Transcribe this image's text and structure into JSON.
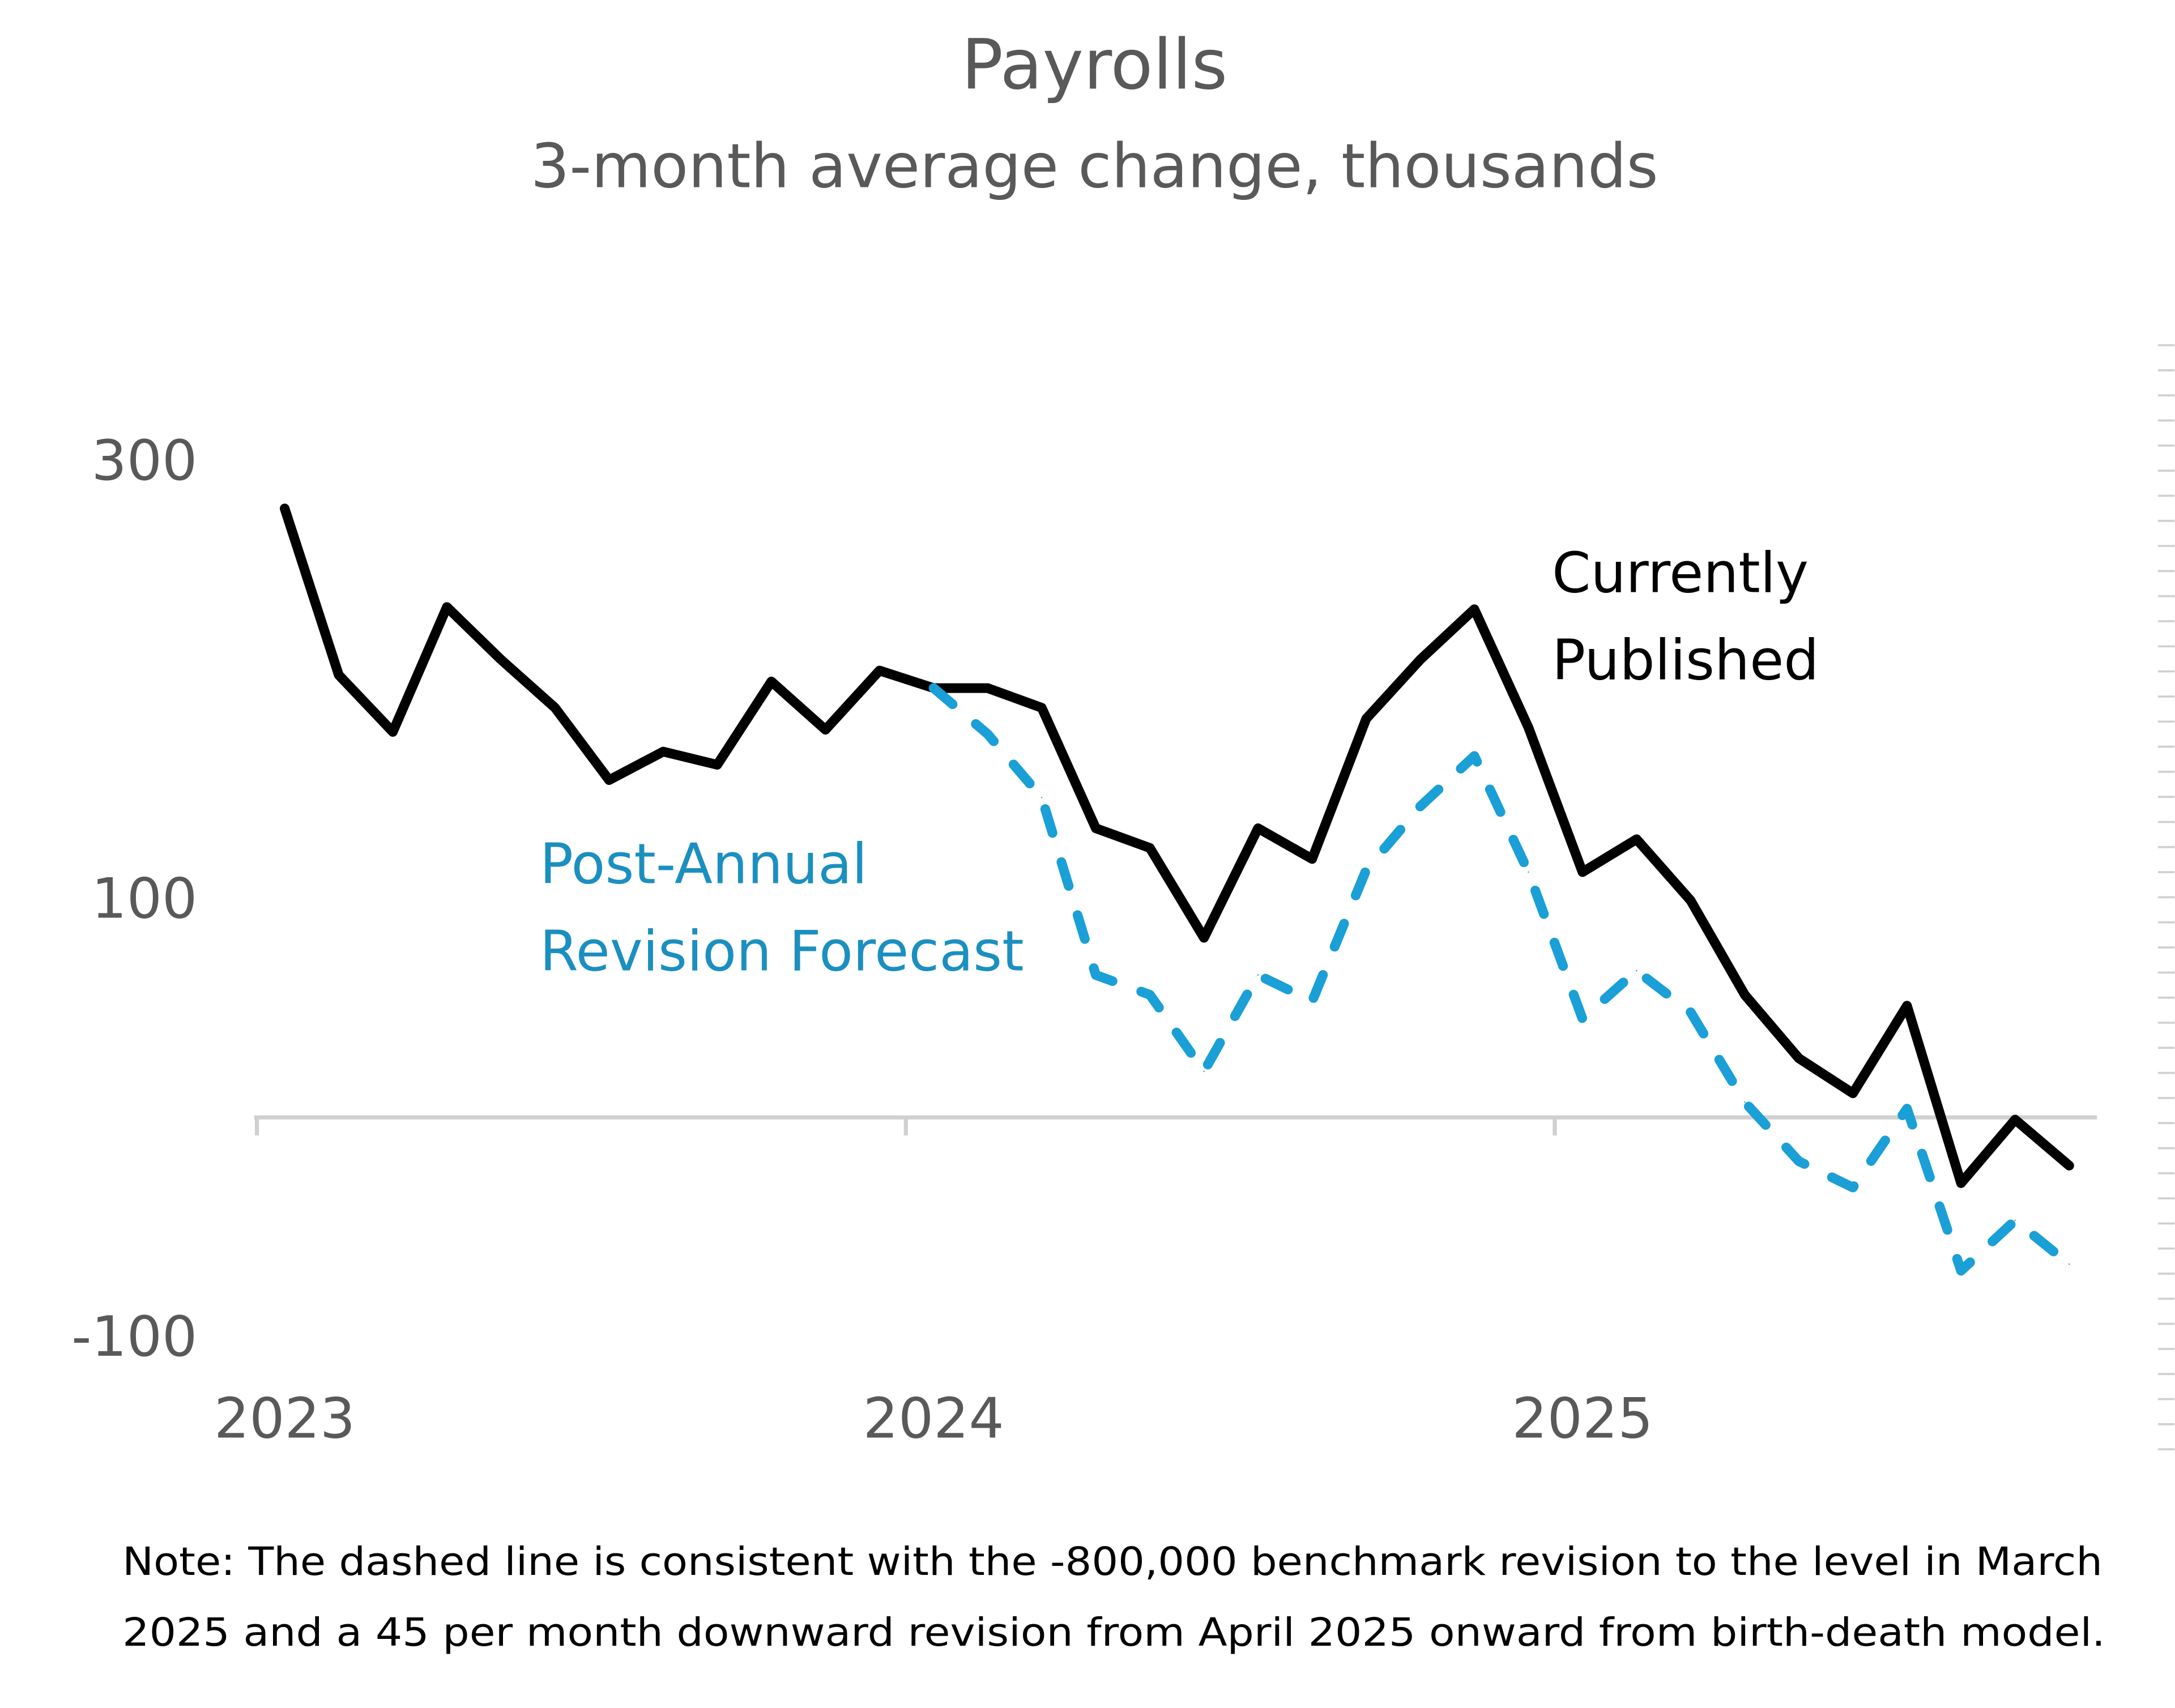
{
  "chart_data": {
    "type": "line",
    "title": "Payrolls",
    "subtitle": "3-month average change, thousands",
    "x_start": "2023-01",
    "frequency": "monthly",
    "x_ticks": [
      "2023",
      "2024",
      "2025"
    ],
    "y_ticks": [
      300,
      100,
      -100
    ],
    "ylim": [
      -100,
      300
    ],
    "zero_line": true,
    "grid": false,
    "series": [
      {
        "name": "Currently Published",
        "color": "#000000",
        "style": "solid",
        "start_index": 0,
        "values": [
          278,
          202,
          176,
          233,
          209,
          187,
          154,
          167,
          161,
          199,
          177,
          204,
          196,
          196,
          187,
          132,
          123,
          82,
          132,
          118,
          182,
          209,
          232,
          178,
          112,
          127,
          99,
          56,
          27,
          11,
          51,
          -30,
          -1,
          -22
        ]
      },
      {
        "name": "Post-Annual Revision Forecast",
        "color": "#1a9fd6",
        "style": "dashed",
        "start_index": 12,
        "values": [
          196,
          175,
          146,
          65,
          56,
          21,
          65,
          53,
          113,
          142,
          165,
          112,
          45,
          67,
          48,
          7,
          -20,
          -32,
          4,
          -70,
          -47,
          -67
        ]
      }
    ],
    "labels": {
      "published_line1": "Currently",
      "published_line2": "Published",
      "forecast_line1": "Post-Annual",
      "forecast_line2": "Revision Forecast"
    },
    "note_line1": "Note: The dashed line is consistent with the -800,000 benchmark revision to the level in March",
    "note_line2": "2025 and a 45 per month downward revision from April 2025 onward from birth-death model."
  }
}
